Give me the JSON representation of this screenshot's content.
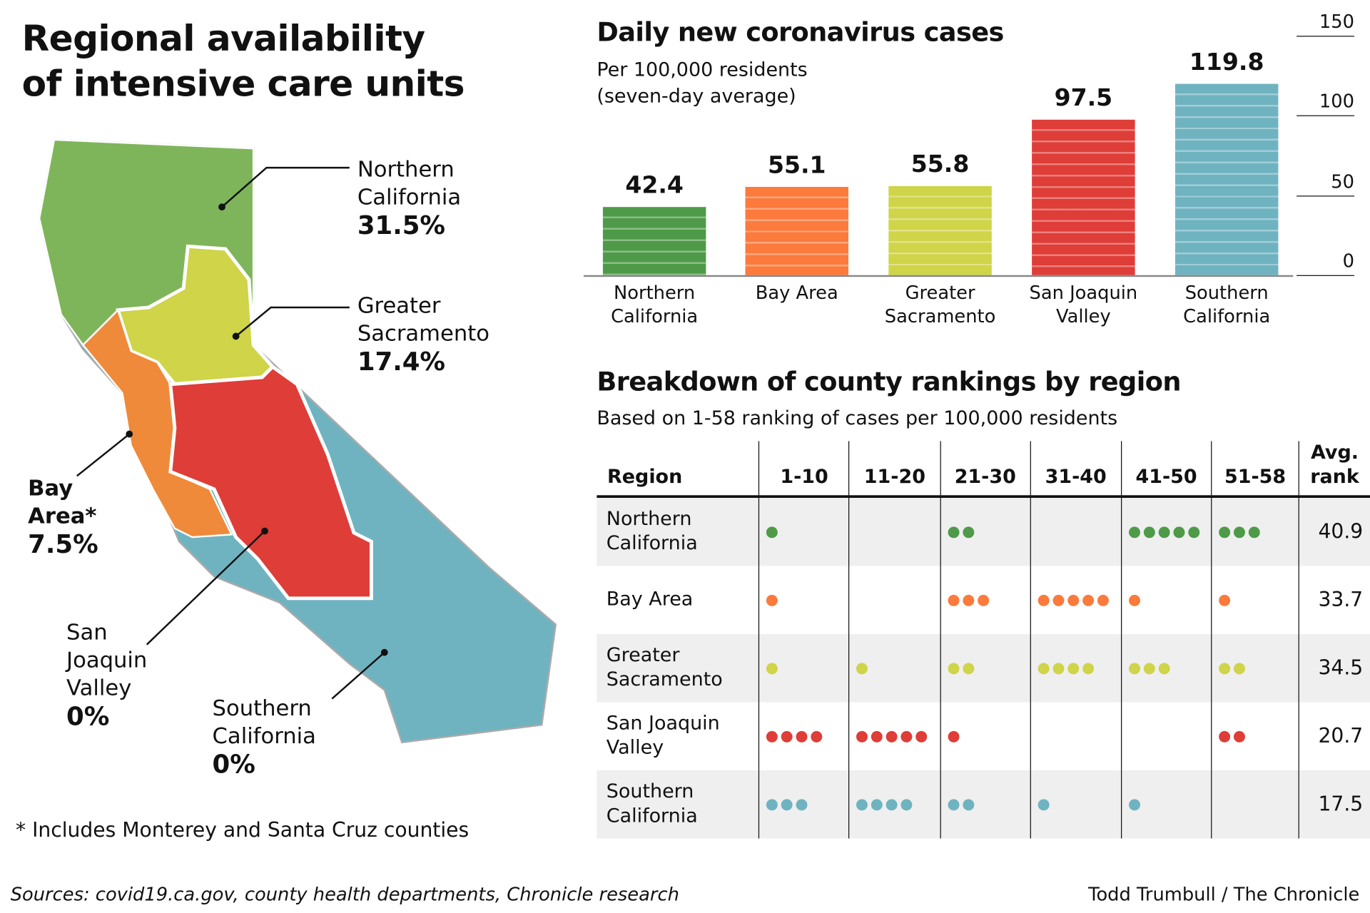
{
  "left": {
    "title_line1": "Regional availability",
    "title_line2": "of intensive care units",
    "map_labels": [
      {
        "name_line1": "Northern",
        "name_line2": "California",
        "value": "31.5%"
      },
      {
        "name_line1": "Greater",
        "name_line2": "Sacramento",
        "value": "17.4%"
      },
      {
        "name_line1": "Bay",
        "name_line2": "Area*",
        "value": "7.5%"
      },
      {
        "name_line1": "San",
        "name_line2": "Joaquin",
        "name_line3": "Valley",
        "value": "0%"
      },
      {
        "name_line1": "Southern",
        "name_line2": "California",
        "value": "0%"
      }
    ],
    "footnote": "* Includes Monterey and Santa Cruz counties"
  },
  "colors": {
    "northern": "#4e9a48",
    "bay": "#fb7a3c",
    "sacramento": "#cfd449",
    "sjv": "#df3d38",
    "southern": "#6fb3c0"
  },
  "chart_data": [
    {
      "type": "bar",
      "title": "Daily new coronavirus cases",
      "subtitle_line1": "Per 100,000 residents",
      "subtitle_line2": "(seven-day average)",
      "categories": [
        [
          "Northern",
          "California"
        ],
        [
          "Bay Area",
          ""
        ],
        [
          "Greater",
          "Sacramento"
        ],
        [
          "San Joaquin",
          "Valley"
        ],
        [
          "Southern",
          "California"
        ]
      ],
      "values": [
        42.4,
        55.1,
        55.8,
        97.5,
        119.8
      ],
      "value_labels": [
        "42.4",
        "55.1",
        "55.8",
        "97.5",
        "119.8"
      ],
      "ylim": [
        0,
        150
      ],
      "yticks": [
        "0",
        "50",
        "100",
        "150"
      ],
      "grid": false
    },
    {
      "type": "table",
      "title": "Breakdown of county rankings by region",
      "subtitle": "Based on 1-58 ranking of cases per 100,000 residents",
      "columns": [
        "Region",
        "1-10",
        "11-20",
        "21-30",
        "31-40",
        "41-50",
        "51-58",
        "Avg.",
        "rank"
      ],
      "rows": [
        {
          "region_line1": "Northern",
          "region_line2": "California",
          "counts": [
            1,
            0,
            2,
            0,
            5,
            3
          ],
          "avg": "40.9"
        },
        {
          "region_line1": "Bay Area",
          "region_line2": "",
          "counts": [
            1,
            0,
            3,
            5,
            1,
            1
          ],
          "avg": "33.7"
        },
        {
          "region_line1": "Greater",
          "region_line2": "Sacramento",
          "counts": [
            1,
            1,
            2,
            4,
            3,
            2
          ],
          "avg": "34.5"
        },
        {
          "region_line1": "San Joaquin",
          "region_line2": "Valley",
          "counts": [
            4,
            5,
            1,
            0,
            0,
            2
          ],
          "avg": "20.7"
        },
        {
          "region_line1": "Southern",
          "region_line2": "California",
          "counts": [
            3,
            4,
            2,
            1,
            1,
            0
          ],
          "avg": "17.5"
        }
      ]
    }
  ],
  "footer": {
    "sources": "Sources: covid19.ca.gov, county health departments, Chronicle research",
    "credit": "Todd Trumbull / The Chronicle"
  }
}
